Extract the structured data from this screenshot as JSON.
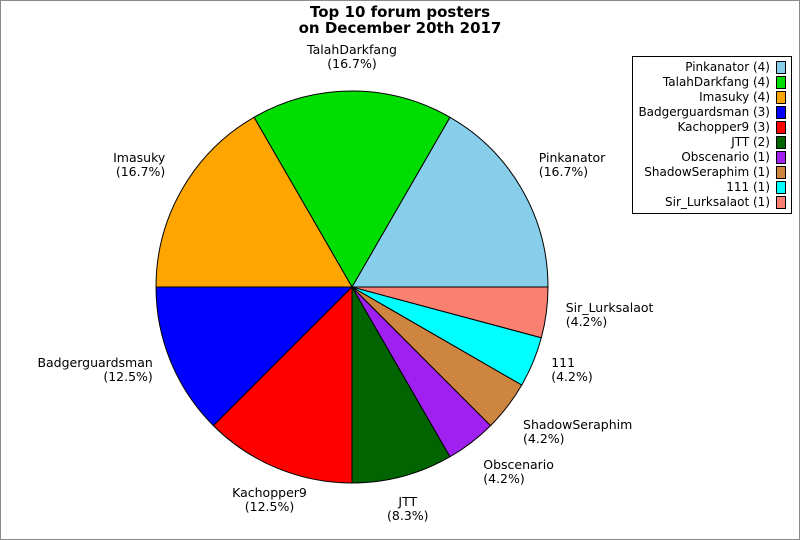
{
  "title": {
    "line1": "Top 10 forum posters",
    "line2": "on December 20th 2017"
  },
  "chart_data": {
    "type": "pie",
    "title": "Top 10 forum posters on December 20th 2017",
    "total_posts": 24,
    "start_angle_deg": 0,
    "direction": "counterclockwise",
    "label_distance": 1.1,
    "legend_position": "upper right",
    "slices": [
      {
        "label": "Pinkanator",
        "posts": 4,
        "pct": 16.7,
        "pct_display": "(16.7%)",
        "legend_label": "Pinkanator (4)",
        "color": "#87CEEB"
      },
      {
        "label": "TalahDarkfang",
        "posts": 4,
        "pct": 16.7,
        "pct_display": "(16.7%)",
        "legend_label": "TalahDarkfang (4)",
        "color": "#00DD00"
      },
      {
        "label": "Imasuky",
        "posts": 4,
        "pct": 16.7,
        "pct_display": "(16.7%)",
        "legend_label": "Imasuky (4)",
        "color": "#FFA500"
      },
      {
        "label": "Badgerguardsman",
        "posts": 3,
        "pct": 12.5,
        "pct_display": "(12.5%)",
        "legend_label": "Badgerguardsman (3)",
        "color": "#0000FF"
      },
      {
        "label": "Kachopper9",
        "posts": 3,
        "pct": 12.5,
        "pct_display": "(12.5%)",
        "legend_label": "Kachopper9 (3)",
        "color": "#FF0000"
      },
      {
        "label": "JTT",
        "posts": 2,
        "pct": 8.3,
        "pct_display": "(8.3%)",
        "legend_label": "JTT (2)",
        "color": "#006400"
      },
      {
        "label": "Obscenario",
        "posts": 1,
        "pct": 4.2,
        "pct_display": "(4.2%)",
        "legend_label": "Obscenario (1)",
        "color": "#A020F0"
      },
      {
        "label": "ShadowSeraphim",
        "posts": 1,
        "pct": 4.2,
        "pct_display": "(4.2%)",
        "legend_label": "ShadowSeraphim (1)",
        "color": "#CD853F"
      },
      {
        "label": "111",
        "posts": 1,
        "pct": 4.2,
        "pct_display": "(4.2%)",
        "legend_label": "111 (1)",
        "color": "#00FFFF"
      },
      {
        "label": "Sir_Lurksalaot",
        "posts": 1,
        "pct": 4.2,
        "pct_display": "(4.2%)",
        "legend_label": "Sir_Lurksalaot (1)",
        "color": "#FA8072"
      }
    ],
    "wedge_edge_color": "#000000"
  }
}
